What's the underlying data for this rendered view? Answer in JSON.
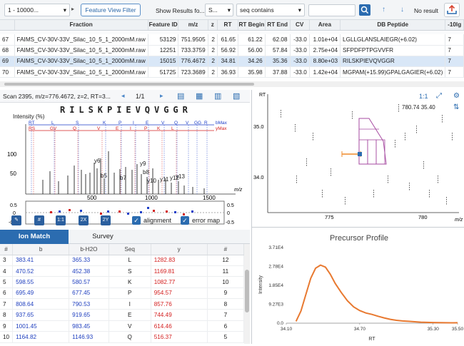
{
  "toolbar": {
    "range_select": "1 - 10000...",
    "filter_button": "Feature View Filter",
    "show_results": "Show Results fo...",
    "s_select": "S...",
    "seq_mode": "seq contains",
    "seq_value": "",
    "result_status": "No result"
  },
  "grid": {
    "headers": [
      "",
      "Fraction",
      "Feature ID",
      "m/z",
      "z",
      "RT",
      "RT Begin",
      "RT End",
      "CV",
      "Area",
      "DB Peptide",
      "-10lg"
    ],
    "rows": [
      [
        "67",
        "FAIMS_CV-30V-33V_Silac_10_5_1_2000mM.raw",
        "53129",
        "751.9505",
        "2",
        "61.65",
        "61.22",
        "62.08",
        "-33.0",
        "1.01e+04",
        "LGLLGLANSLAIEGR(+6.02)",
        "7"
      ],
      [
        "68",
        "FAIMS_CV-30V-33V_Silac_10_5_1_2000mM.raw",
        "12251",
        "733.3759",
        "2",
        "56.92",
        "56.00",
        "57.84",
        "-33.0",
        "2.75e+04",
        "SFPDFPTPGVVFR",
        "7"
      ],
      [
        "69",
        "FAIMS_CV-30V-33V_Silac_10_5_1_2000mM.raw",
        "15015",
        "776.4672",
        "2",
        "34.81",
        "34.26",
        "35.36",
        "-33.0",
        "8.80e+03",
        "RILSKPIEVQVGGR",
        "7"
      ],
      [
        "70",
        "FAIMS_CV-30V-33V_Silac_10_5_1_2000mM.raw",
        "51725",
        "723.3689",
        "2",
        "36.93",
        "35.98",
        "37.88",
        "-33.0",
        "1.42e+04",
        "MGPAM(+15.99)GPALGAGIER(+6.02)",
        "7"
      ]
    ]
  },
  "spectrum": {
    "scan_info": "Scan 2395, m/z=776.4672, z=2, RT=3...",
    "page": "1/1",
    "peptide": [
      "R",
      "I",
      "L",
      "S",
      "K",
      "P",
      "I",
      "E",
      "V",
      "Q",
      "V",
      "G",
      "G",
      "R"
    ],
    "intensity_label": "Intensity (%)",
    "y_tick_100": "100",
    "y_tick_50": "50",
    "x_ticks": [
      "500",
      "1000",
      "1500"
    ],
    "x_unit": "m/z",
    "b_ions": [
      "RS",
      "GV",
      "Q",
      "V",
      "E",
      "I",
      "P",
      "K",
      "L"
    ],
    "y_ions_top": [
      "RT",
      "L",
      "S",
      "K",
      "P",
      "I",
      "E",
      "V",
      "Q",
      "V",
      "GG",
      "R"
    ],
    "b_max": "bMax",
    "y_max": "yMax",
    "peak_labels": [
      "y6",
      "b5",
      "b7",
      "y9",
      "b8",
      "y10",
      "y11",
      "y12",
      "y13"
    ],
    "err_ticks_left": [
      "0.5",
      "0",
      "-0.5"
    ],
    "err_ticks_right": [
      "0.5",
      "0",
      "-0.5"
    ],
    "buttons": {
      "hash": "#",
      "one": "1:1",
      "two_x": "2X",
      "two_y": "2Y"
    },
    "alignment_label": "alignment",
    "error_map_label": "error map"
  },
  "rt_plot": {
    "ratio": "1:1",
    "coords": "780.74 35.40",
    "y_axis_label": "RT",
    "y_ticks": [
      "35.0",
      "34.0"
    ],
    "x_ticks": [
      "775",
      "780"
    ],
    "x_unit": "m/z"
  },
  "tabs": {
    "ion_match": "Ion Match",
    "survey": "Survey"
  },
  "ion_table": {
    "headers": [
      "#",
      "b",
      "b-H2O",
      "Seq",
      "y",
      "#"
    ],
    "rows": [
      [
        "3",
        "383.41",
        "365.33",
        "L",
        "1282.83",
        "12"
      ],
      [
        "4",
        "470.52",
        "452.38",
        "S",
        "1169.81",
        "11"
      ],
      [
        "5",
        "598.55",
        "580.57",
        "K",
        "1082.77",
        "10"
      ],
      [
        "6",
        "695.49",
        "677.45",
        "P",
        "954.57",
        "9"
      ],
      [
        "7",
        "808.64",
        "790.53",
        "I",
        "857.76",
        "8"
      ],
      [
        "8",
        "937.65",
        "919.65",
        "E",
        "744.49",
        "7"
      ],
      [
        "9",
        "1001.45",
        "983.45",
        "V",
        "614.46",
        "6"
      ],
      [
        "10",
        "1164.82",
        "1146.93",
        "Q",
        "516.37",
        "5"
      ]
    ]
  },
  "precursor": {
    "title": "Precursor Profile",
    "ylabel": "Intensity",
    "xlabel": "RT"
  },
  "chart_data": {
    "type": "line",
    "title": "Precursor Profile",
    "xlabel": "RT",
    "ylabel": "Intensity",
    "x_ticks": [
      "34.10",
      "34.70",
      "35.30",
      "35.50"
    ],
    "y_ticks": [
      "0.0",
      "9.27E3",
      "1.85E4",
      "2.78E4",
      "3.71E4"
    ],
    "xlim": [
      34.1,
      35.5
    ],
    "ylim": [
      0,
      37100
    ],
    "x": [
      34.18,
      34.22,
      34.26,
      34.3,
      34.34,
      34.38,
      34.42,
      34.46,
      34.5,
      34.55,
      34.6,
      34.65,
      34.7,
      34.75,
      34.8,
      34.85,
      34.9,
      34.95,
      35.0,
      35.05,
      35.1,
      35.15,
      35.2,
      35.25,
      35.3,
      35.35,
      35.4,
      35.45,
      35.5
    ],
    "values": [
      900,
      6000,
      14000,
      22000,
      27000,
      28500,
      27500,
      24000,
      19500,
      15000,
      11000,
      8000,
      6200,
      5000,
      4300,
      3400,
      2600,
      1900,
      1400,
      1100,
      900,
      700,
      500,
      400,
      300,
      250,
      200,
      180,
      200
    ],
    "color": "#e87930"
  }
}
